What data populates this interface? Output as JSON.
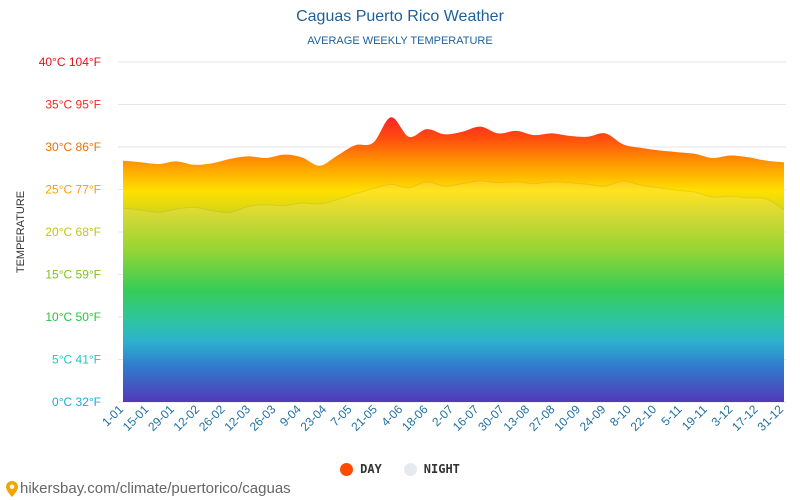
{
  "header": {
    "title": "Caguas Puerto Rico Weather",
    "subtitle": "AVERAGE WEEKLY TEMPERATURE"
  },
  "legend": {
    "day_label": "DAY",
    "night_label": "NIGHT",
    "day_color": "#ff4a00",
    "night_color": "#e6e9ee"
  },
  "footer": {
    "source_url": "hikersbay.com/climate/puertorico/caguas",
    "pin_icon": "map-pin-icon"
  },
  "chart_data": {
    "type": "area",
    "title": "Caguas Puerto Rico Weather",
    "subtitle": "AVERAGE WEEKLY TEMPERATURE",
    "ylabel": "TEMPERATURE",
    "xlabel": "",
    "ylim": [
      0,
      40
    ],
    "grid": true,
    "legend_position": "bottom",
    "y_ticks": [
      {
        "value": 0,
        "label": "0°C 32°F",
        "color": "#1fa9d6"
      },
      {
        "value": 5,
        "label": "5°C 41°F",
        "color": "#1fc6c6"
      },
      {
        "value": 10,
        "label": "10°C 50°F",
        "color": "#27c43b"
      },
      {
        "value": 15,
        "label": "15°C 59°F",
        "color": "#7cc21f"
      },
      {
        "value": 20,
        "label": "20°C 68°F",
        "color": "#bcc812"
      },
      {
        "value": 25,
        "label": "25°C 77°F",
        "color": "#f0a500"
      },
      {
        "value": 30,
        "label": "30°C 86°F",
        "color": "#f07000"
      },
      {
        "value": 35,
        "label": "35°C 95°F",
        "color": "#e8301a"
      },
      {
        "value": 40,
        "label": "40°C 104°F",
        "color": "#e0101a"
      }
    ],
    "x_tick_labels": [
      "1-01",
      "15-01",
      "29-01",
      "12-02",
      "26-02",
      "12-03",
      "26-03",
      "9-04",
      "23-04",
      "7-05",
      "21-05",
      "4-06",
      "18-06",
      "2-07",
      "16-07",
      "30-07",
      "13-08",
      "27-08",
      "10-09",
      "24-09",
      "8-10",
      "22-10",
      "5-11",
      "19-11",
      "3-12",
      "17-12",
      "31-12"
    ],
    "series": [
      {
        "name": "DAY",
        "values": [
          28.4,
          28.2,
          28.0,
          28.3,
          27.9,
          28.1,
          28.6,
          28.9,
          28.7,
          29.1,
          28.8,
          27.8,
          29.0,
          30.2,
          30.5,
          33.5,
          31.2,
          32.1,
          31.5,
          31.8,
          32.4,
          31.6,
          31.9,
          31.4,
          31.6,
          31.3,
          31.2,
          31.6,
          30.3,
          29.9,
          29.6,
          29.4,
          29.2,
          28.7,
          29.0,
          28.8,
          28.4,
          28.2
        ]
      },
      {
        "name": "NIGHT",
        "values": [
          22.8,
          22.6,
          22.3,
          22.7,
          22.9,
          22.5,
          22.3,
          23.0,
          23.2,
          23.1,
          23.4,
          23.3,
          23.8,
          24.5,
          25.1,
          25.6,
          25.2,
          25.9,
          25.4,
          25.7,
          26.0,
          25.8,
          25.9,
          25.7,
          25.9,
          25.8,
          25.6,
          25.4,
          26.0,
          25.5,
          25.2,
          24.9,
          24.7,
          24.1,
          24.2,
          24.0,
          23.9,
          22.6
        ]
      }
    ]
  }
}
